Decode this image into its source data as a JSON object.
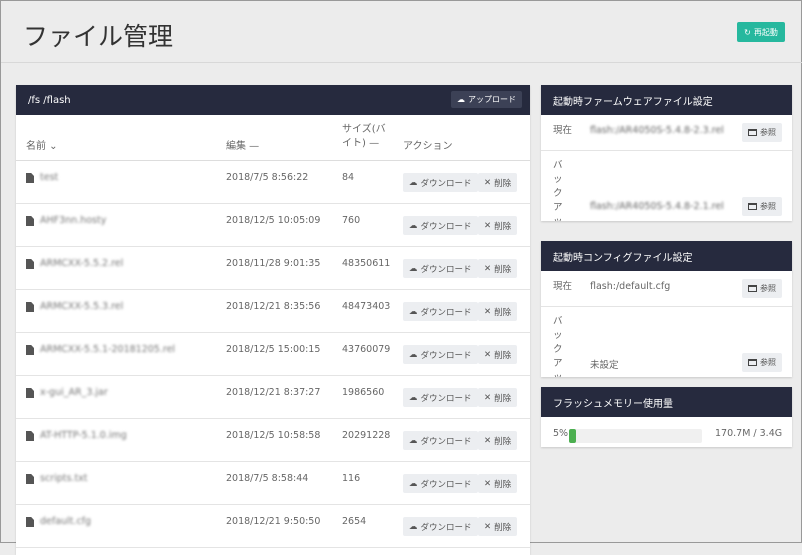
{
  "header": {
    "title": "ファイル管理",
    "restart_label": "再起動"
  },
  "files": {
    "path": "/fs /flash",
    "upload_label": "アップロード",
    "columns": {
      "name": "名前",
      "modified": "編集",
      "size": "サイズ(バイト)",
      "actions": "アクション"
    },
    "download_label": "ダウンロード",
    "delete_label": "削除",
    "rows": [
      {
        "name": "test",
        "modified": "2018/7/5 8:56:22",
        "size": "84"
      },
      {
        "name": "AHF3nn.hosty",
        "modified": "2018/12/5 10:05:09",
        "size": "760"
      },
      {
        "name": "ARMCXX-5.5.2.rel",
        "modified": "2018/11/28 9:01:35",
        "size": "48350611"
      },
      {
        "name": "ARMCXX-5.5.3.rel",
        "modified": "2018/12/21 8:35:56",
        "size": "48473403"
      },
      {
        "name": "ARMCXX-5.5.1-20181205.rel",
        "modified": "2018/12/5 15:00:15",
        "size": "43760079"
      },
      {
        "name": "x-gui_AR_3.jar",
        "modified": "2018/12/21 8:37:27",
        "size": "1986560"
      },
      {
        "name": "AT-HTTP-5.1.0.img",
        "modified": "2018/12/5 10:58:58",
        "size": "20291228"
      },
      {
        "name": "scripts.txt",
        "modified": "2018/7/5 8:58:44",
        "size": "116"
      },
      {
        "name": "default.cfg",
        "modified": "2018/12/21 9:50:50",
        "size": "2654"
      }
    ]
  },
  "firmware": {
    "title": "起動時ファームウェアファイル設定",
    "current_label": "現在",
    "current_value": "flash:/AR4050S-5.4.8-2.3.rel",
    "backup_label": "バックアップ",
    "backup_value": "flash:/AR4050S-5.4.8-2.1.rel",
    "browse_label": "参照"
  },
  "config": {
    "title": "起動時コンフィグファイル設定",
    "current_label": "現在",
    "current_value": "flash:/default.cfg",
    "backup_label": "バックアップ",
    "backup_value": "未設定",
    "browse_label": "参照"
  },
  "memory": {
    "title": "フラッシュメモリー使用量",
    "percent_label": "5%",
    "percent": 5,
    "usage": "170.7M / 3.4G"
  }
}
